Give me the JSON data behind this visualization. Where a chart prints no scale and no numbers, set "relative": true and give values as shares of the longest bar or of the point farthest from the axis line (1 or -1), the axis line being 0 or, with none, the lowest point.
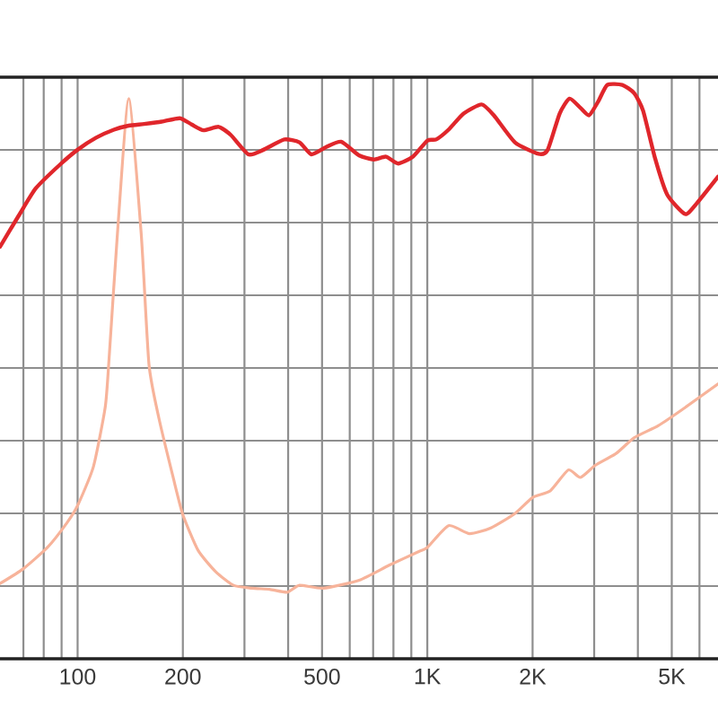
{
  "chart_data": {
    "type": "line",
    "relative": true,
    "log": "x",
    "grid": true,
    "xlim": [
      60,
      6780
    ],
    "xticks": [
      {
        "value": 70,
        "label": null
      },
      {
        "value": 80,
        "label": null
      },
      {
        "value": 90,
        "label": null
      },
      100,
      200,
      {
        "value": 300,
        "label": null
      },
      {
        "value": 400,
        "label": null
      },
      500,
      {
        "value": 600,
        "label": null
      },
      {
        "value": 700,
        "label": null
      },
      {
        "value": 800,
        "label": null
      },
      {
        "value": 900,
        "label": null
      },
      {
        "value": 1000,
        "label": "1K"
      },
      {
        "value": 2000,
        "label": "2K"
      },
      {
        "value": 3000,
        "label": null
      },
      {
        "value": 4000,
        "label": null
      },
      {
        "value": 5000,
        "label": "5K"
      },
      {
        "value": 6000,
        "label": null
      }
    ],
    "series": [
      {
        "color": "#e0262b",
        "x": [
          60,
          68,
          76,
          89,
          100,
          113,
          127,
          140,
          155,
          174,
          196,
          212,
          229,
          253,
          274,
          308,
          340,
          390,
          431,
          466,
          514,
          567,
          639,
          704,
          762,
          825,
          910,
          1000,
          1060,
          1150,
          1270,
          1430,
          1550,
          1780,
          2080,
          2210,
          2390,
          2550,
          2740,
          2900,
          3080,
          3270,
          3610,
          3900,
          4140,
          4480,
          4850,
          5460,
          5900,
          6780
        ],
        "values": [
          0.718,
          0.773,
          0.82,
          0.861,
          0.887,
          0.908,
          0.922,
          0.929,
          0.932,
          0.936,
          0.942,
          0.931,
          0.921,
          0.927,
          0.913,
          0.879,
          0.887,
          0.905,
          0.9,
          0.879,
          0.892,
          0.901,
          0.877,
          0.87,
          0.875,
          0.863,
          0.875,
          0.903,
          0.905,
          0.922,
          0.95,
          0.966,
          0.947,
          0.9,
          0.88,
          0.887,
          0.95,
          0.976,
          0.96,
          0.947,
          0.971,
          1,
          1,
          0.986,
          0.955,
          0.872,
          0.809,
          0.775,
          0.794,
          0.84
        ]
      },
      {
        "color": "#f7b39a",
        "x": [
          60,
          70,
          82,
          93,
          100,
          111,
          120,
          123,
          130,
          140,
          152,
          160,
          171,
          188,
          200,
          221,
          248,
          279,
          315,
          354,
          398,
          431,
          504,
          639,
          778,
          946,
          1000,
          1150,
          1320,
          1520,
          1780,
          2000,
          2250,
          2530,
          2740,
          3020,
          3470,
          3900,
          4570,
          5350,
          6780
        ],
        "values": [
          0.131,
          0.157,
          0.194,
          0.236,
          0.267,
          0.335,
          0.439,
          0.522,
          0.741,
          0.976,
          0.741,
          0.513,
          0.418,
          0.314,
          0.251,
          0.189,
          0.152,
          0.128,
          0.123,
          0.121,
          0.116,
          0.128,
          0.123,
          0.137,
          0.163,
          0.187,
          0.194,
          0.232,
          0.218,
          0.228,
          0.253,
          0.281,
          0.293,
          0.329,
          0.316,
          0.337,
          0.358,
          0.385,
          0.406,
          0.434,
          0.479
        ]
      }
    ]
  }
}
